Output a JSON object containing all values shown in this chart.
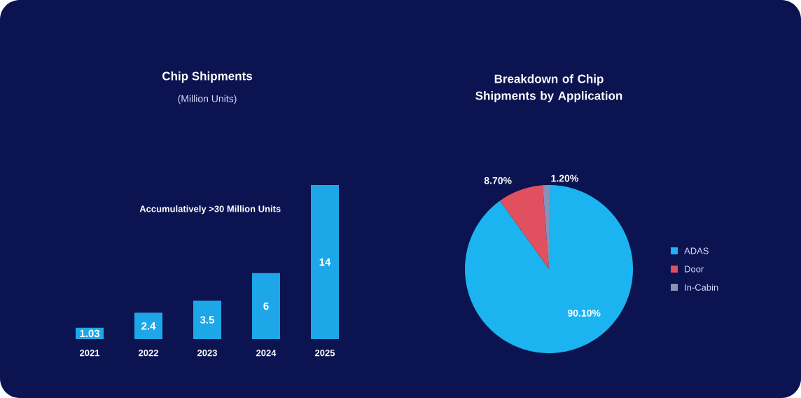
{
  "chart_data": [
    {
      "type": "bar",
      "title": "Chip Shipments",
      "subtitle": "(Million Units)",
      "categories": [
        "2021",
        "2022",
        "2023",
        "2024",
        "2025"
      ],
      "values": [
        1.03,
        2.4,
        3.5,
        6,
        14
      ],
      "color": "#1ea7e8",
      "data_labels": true,
      "annotations": [
        "Accumulatively >30 Million Units"
      ]
    },
    {
      "type": "pie",
      "title": "Breakdown of Chip Shipments by Application",
      "categories": [
        "ADAS",
        "Door",
        "In-Cabin"
      ],
      "values": [
        90.1,
        8.7,
        1.2
      ],
      "colors": [
        "#1cb4f0",
        "#e0505e",
        "#8c90b8"
      ],
      "value_labels": [
        "90.10%",
        "8.70%",
        "1.20%"
      ],
      "legend": "right"
    }
  ]
}
